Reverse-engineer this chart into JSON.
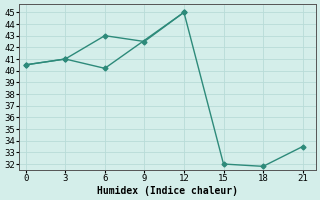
{
  "xlabel": "Humidex (Indice chaleur)",
  "line1_x": [
    0,
    3,
    6,
    9,
    12
  ],
  "line1_y": [
    40.5,
    41,
    43,
    42.5,
    45
  ],
  "line2_x": [
    0,
    3,
    6,
    12,
    15,
    18,
    21
  ],
  "line2_y": [
    40.5,
    41,
    40.2,
    45,
    32,
    31.8,
    33.5
  ],
  "line_color": "#2d8a7a",
  "bg_color": "#d4eeea",
  "grid_color": "#b8dcd8",
  "xlim": [
    -0.5,
    22
  ],
  "ylim": [
    31.5,
    45.7
  ],
  "xticks": [
    0,
    3,
    6,
    9,
    12,
    15,
    18,
    21
  ],
  "yticks": [
    32,
    33,
    34,
    35,
    36,
    37,
    38,
    39,
    40,
    41,
    42,
    43,
    44,
    45
  ],
  "marker": "D",
  "marker_size": 2.5,
  "line_width": 1.0,
  "tick_fontsize": 6.5,
  "xlabel_fontsize": 7
}
